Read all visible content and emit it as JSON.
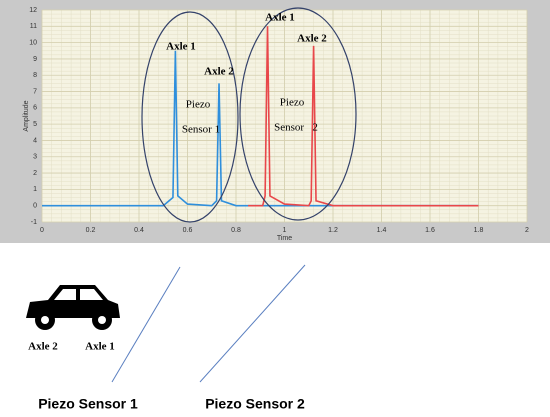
{
  "chart_data": {
    "type": "line",
    "x_label": "Time",
    "y_label": "Amplitude",
    "xlim": [
      0,
      2
    ],
    "xticks": [
      0,
      0.2,
      0.4,
      0.6,
      0.8,
      1,
      1.2,
      1.4,
      1.6,
      1.8,
      2
    ],
    "ylim": [
      -1,
      12
    ],
    "yticks": [
      -1,
      0,
      1,
      2,
      3,
      4,
      5,
      6,
      7,
      8,
      9,
      10,
      11,
      12
    ],
    "grid": true,
    "series": [
      {
        "color": "#2f8fdc",
        "x": [
          0,
          0.5,
          0.54,
          0.55,
          0.56,
          0.6,
          0.7,
          0.72,
          0.73,
          0.74,
          0.8,
          1.8
        ],
        "values": [
          0,
          0,
          0.5,
          9.5,
          0.6,
          0.1,
          0,
          0.3,
          7.5,
          0.3,
          0,
          0
        ]
      },
      {
        "color": "#e8474a",
        "x": [
          0.85,
          0.91,
          0.92,
          0.93,
          0.94,
          1.0,
          1.1,
          1.11,
          1.12,
          1.13,
          1.2,
          1.8
        ],
        "values": [
          0,
          0,
          0.6,
          11,
          0.6,
          0.1,
          0,
          0.3,
          9.8,
          0.3,
          0,
          0
        ]
      }
    ],
    "annotations": [
      "Axle 1",
      "Axle 2",
      "Piezo",
      "Sensor 1",
      "Axle 1",
      "Axle 2",
      "Piezo",
      "Sensor   2"
    ]
  },
  "scene": {
    "car_labels": [
      "Axle 2",
      "Axle 1"
    ],
    "sensors": [
      "Piezo Sensor 1",
      "Piezo Sensor 2"
    ]
  }
}
